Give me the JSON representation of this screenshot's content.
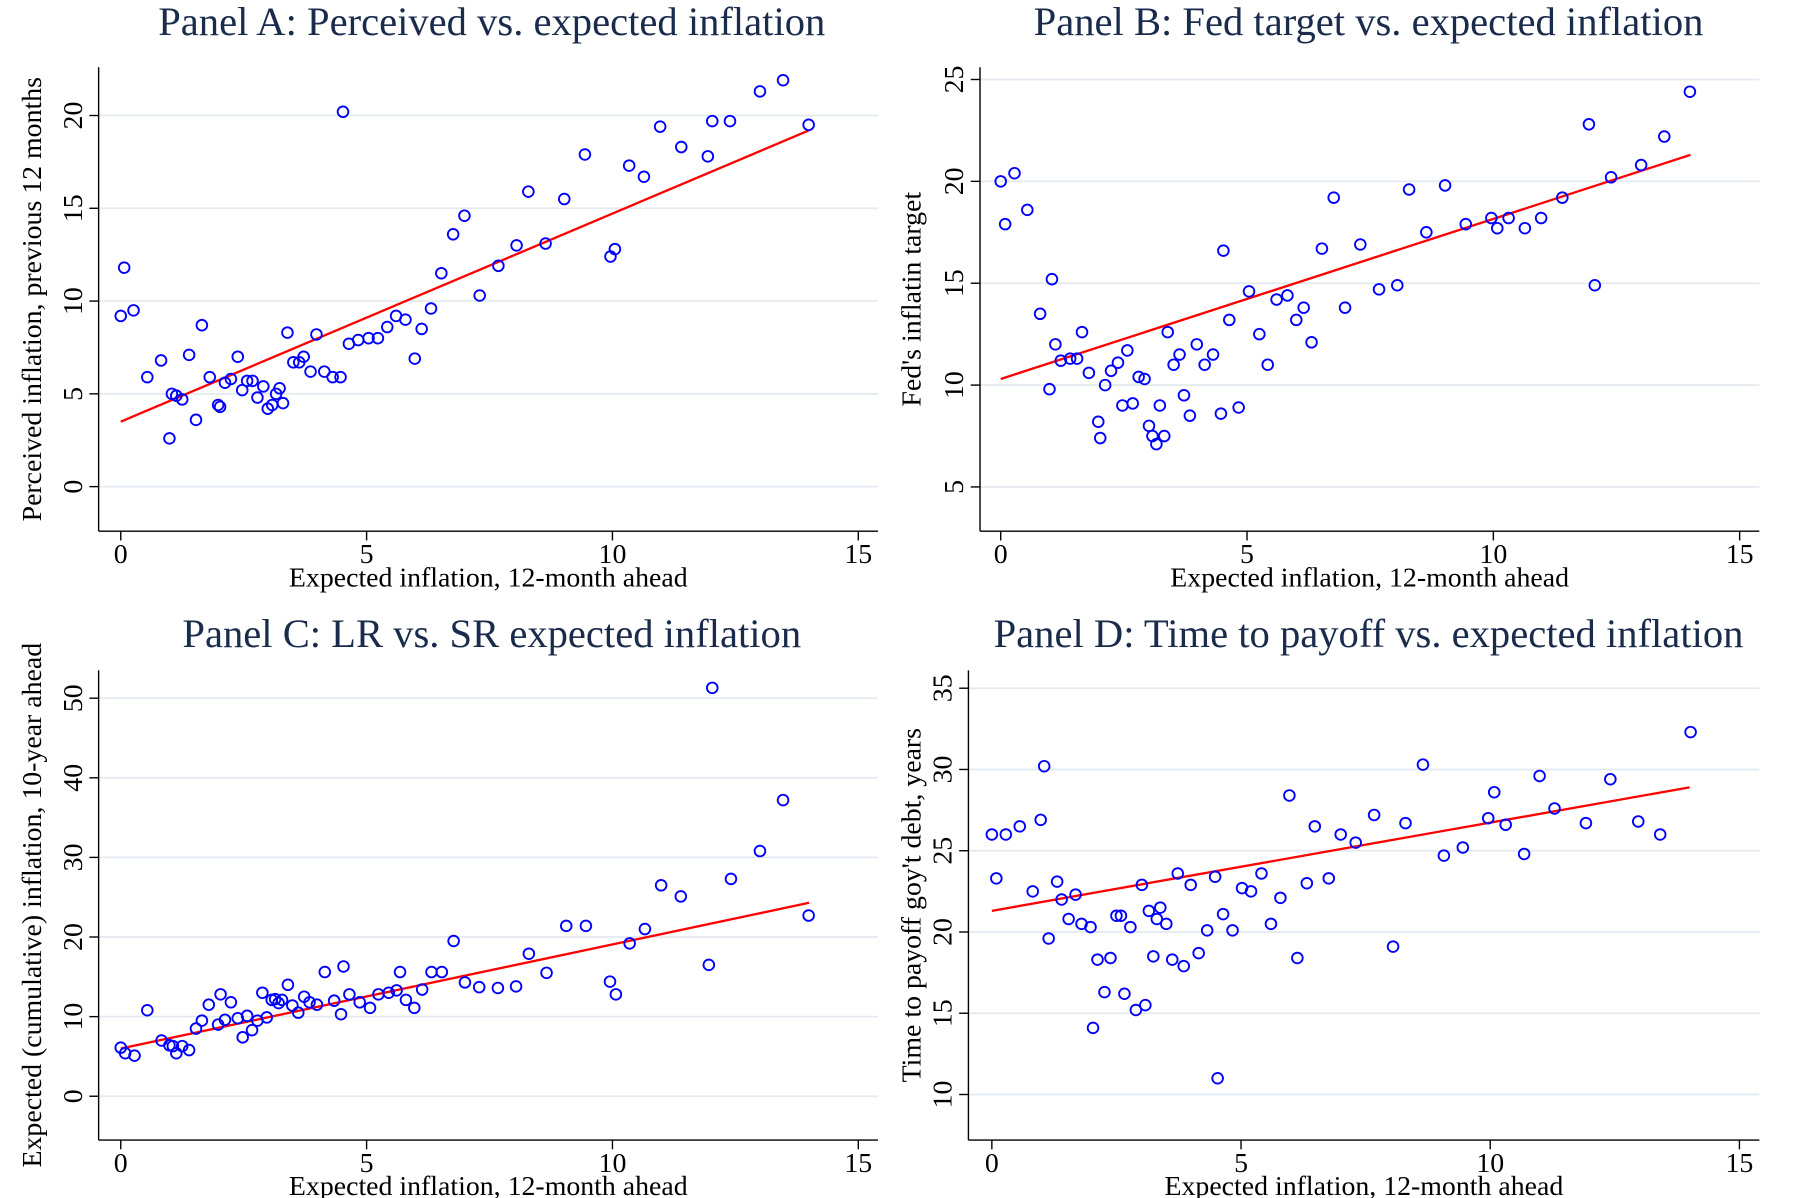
{
  "chart_data": [
    {
      "type": "scatter",
      "title": "Panel A: Perceived vs. expected inflation",
      "x_label": "Expected inflation, 12-month ahead",
      "y_label": "Perceived inflation, previous 12 months",
      "xlim": [
        -0.45,
        15.4
      ],
      "ylim": [
        -2.4,
        22.6
      ],
      "xticks": [
        0,
        5,
        10,
        15
      ],
      "yticks": [
        0,
        5,
        10,
        15,
        20
      ],
      "grid": true,
      "x": [
        0,
        0.07,
        0.26,
        0.54,
        0.82,
        0.99,
        1.04,
        1.13,
        1.25,
        1.39,
        1.53,
        1.65,
        1.81,
        1.98,
        2.02,
        2.12,
        2.24,
        2.38,
        2.47,
        2.57,
        2.68,
        2.78,
        2.9,
        2.99,
        3.08,
        3.16,
        3.23,
        3.3,
        3.39,
        3.51,
        3.63,
        3.72,
        3.86,
        3.98,
        4.14,
        4.31,
        4.47,
        4.52,
        4.64,
        4.83,
        5.04,
        5.23,
        5.42,
        5.6,
        5.79,
        5.98,
        6.12,
        6.31,
        6.52,
        6.76,
        6.99,
        7.3,
        7.68,
        8.05,
        8.29,
        8.64,
        9.02,
        9.44,
        9.96,
        10.05,
        10.34,
        10.64,
        10.97,
        11.4,
        11.94,
        12.03,
        12.39,
        13.0,
        13.47,
        13.99
      ],
      "series": [
        {
          "color": "#0000ff",
          "values": [
            9.2,
            11.8,
            9.5,
            5.9,
            6.8,
            2.6,
            5.0,
            4.9,
            4.7,
            7.1,
            3.6,
            8.7,
            5.9,
            4.4,
            4.3,
            5.6,
            5.8,
            7.0,
            5.2,
            5.7,
            5.7,
            4.8,
            5.4,
            4.2,
            4.4,
            5.0,
            5.3,
            4.5,
            8.3,
            6.7,
            6.7,
            7.0,
            6.2,
            8.2,
            6.2,
            5.9,
            5.9,
            20.2,
            7.7,
            7.9,
            8.0,
            8.0,
            8.6,
            9.2,
            9.0,
            6.9,
            8.5,
            9.6,
            11.5,
            13.6,
            14.6,
            10.3,
            11.9,
            13.0,
            15.9,
            13.1,
            15.5,
            17.9,
            12.4,
            12.8,
            17.3,
            16.7,
            19.4,
            18.3,
            17.8,
            19.7,
            19.7,
            21.3,
            21.9,
            19.5
          ]
        }
      ],
      "fit_line": {
        "color": "#ff0000",
        "x": [
          0,
          14
        ],
        "values": [
          3.5,
          19.2
        ]
      }
    },
    {
      "type": "scatter",
      "title": "Panel B: Fed target vs. expected inflation",
      "x_label": "Expected inflation, 12-month ahead",
      "y_label": "Fed's inflatin target",
      "xlim": [
        -0.42,
        15.4
      ],
      "ylim": [
        2.83,
        25.6
      ],
      "xticks": [
        0,
        5,
        10,
        15
      ],
      "yticks": [
        5,
        10,
        15,
        20,
        25
      ],
      "grid": true,
      "x": [
        0,
        0.09,
        0.28,
        0.54,
        0.8,
        0.99,
        1.04,
        1.11,
        1.22,
        1.41,
        1.55,
        1.65,
        1.79,
        1.98,
        2.02,
        2.12,
        2.24,
        2.38,
        2.47,
        2.57,
        2.68,
        2.8,
        2.92,
        3.01,
        3.08,
        3.16,
        3.23,
        3.32,
        3.39,
        3.51,
        3.63,
        3.72,
        3.84,
        3.98,
        4.14,
        4.31,
        4.47,
        4.52,
        4.64,
        4.83,
        5.04,
        5.25,
        5.42,
        5.6,
        5.82,
        6.0,
        6.15,
        6.31,
        6.52,
        6.76,
        6.99,
        7.3,
        7.68,
        8.05,
        8.29,
        8.64,
        9.02,
        9.44,
        9.96,
        10.08,
        10.31,
        10.64,
        10.97,
        11.4,
        11.94,
        12.06,
        12.39,
        13.0,
        13.47,
        13.99
      ],
      "series": [
        {
          "color": "#0000ff",
          "values": [
            20.0,
            17.9,
            20.4,
            18.6,
            13.5,
            9.8,
            15.2,
            12.0,
            11.2,
            11.3,
            11.3,
            12.6,
            10.6,
            8.2,
            7.4,
            10.0,
            10.7,
            11.1,
            9.0,
            11.7,
            9.1,
            10.4,
            10.3,
            8.0,
            7.5,
            7.1,
            9.0,
            7.5,
            12.6,
            11.0,
            11.5,
            9.5,
            8.5,
            12.0,
            11.0,
            11.5,
            8.6,
            16.6,
            13.2,
            8.9,
            14.6,
            12.5,
            11.0,
            14.2,
            14.4,
            13.2,
            13.8,
            12.1,
            16.7,
            19.2,
            13.8,
            16.9,
            14.7,
            14.9,
            19.6,
            17.5,
            19.8,
            17.9,
            18.2,
            17.7,
            18.2,
            17.7,
            18.2,
            19.2,
            22.8,
            14.9,
            20.2,
            20.8,
            22.2,
            24.4
          ]
        }
      ],
      "fit_line": {
        "color": "#ff0000",
        "x": [
          0,
          14
        ],
        "values": [
          10.3,
          21.3
        ]
      }
    },
    {
      "type": "scatter",
      "title": "Panel C: LR vs. SR expected inflation",
      "x_label": "Expected inflation, 12-month ahead",
      "y_label": "Expected (cumulative) inflation, 10-year ahead",
      "xlim": [
        -0.45,
        15.4
      ],
      "ylim": [
        -5.5,
        53.5
      ],
      "xticks": [
        0,
        5,
        10,
        15
      ],
      "yticks": [
        0,
        10,
        20,
        30,
        40,
        50
      ],
      "grid": true,
      "x": [
        0,
        0.09,
        0.28,
        0.54,
        0.83,
        0.99,
        1.06,
        1.13,
        1.25,
        1.39,
        1.53,
        1.65,
        1.79,
        1.98,
        2.03,
        2.12,
        2.24,
        2.38,
        2.48,
        2.57,
        2.67,
        2.78,
        2.88,
        2.97,
        3.07,
        3.14,
        3.21,
        3.28,
        3.4,
        3.49,
        3.61,
        3.73,
        3.84,
        3.99,
        4.15,
        4.34,
        4.48,
        4.53,
        4.65,
        4.86,
        5.07,
        5.24,
        5.45,
        5.61,
        5.68,
        5.8,
        5.97,
        6.13,
        6.32,
        6.53,
        6.77,
        7.0,
        7.29,
        7.67,
        8.04,
        8.3,
        8.66,
        9.06,
        9.46,
        9.95,
        10.07,
        10.35,
        10.66,
        10.99,
        11.39,
        11.96,
        12.03,
        12.41,
        13.0,
        13.47,
        13.99
      ],
      "series": [
        {
          "color": "#0000ff",
          "values": [
            6.1,
            5.4,
            5.1,
            10.8,
            7.0,
            6.4,
            6.3,
            5.4,
            6.3,
            5.8,
            8.5,
            9.5,
            11.5,
            9.0,
            12.8,
            9.6,
            11.8,
            9.8,
            7.4,
            10.1,
            8.3,
            9.5,
            13.0,
            9.9,
            12.1,
            12.2,
            11.7,
            12.1,
            14.0,
            11.4,
            10.5,
            12.5,
            11.8,
            11.5,
            15.6,
            12.0,
            10.3,
            16.3,
            12.8,
            11.8,
            11.1,
            12.8,
            13.0,
            13.3,
            15.6,
            12.1,
            11.1,
            13.4,
            15.6,
            15.6,
            19.5,
            14.3,
            13.7,
            13.6,
            13.8,
            17.9,
            15.5,
            21.4,
            21.4,
            14.4,
            12.8,
            19.2,
            21.0,
            26.5,
            25.1,
            16.5,
            51.3,
            27.3,
            30.8,
            37.2,
            22.7
          ]
        }
      ],
      "fit_line": {
        "color": "#ff0000",
        "x": [
          0,
          14
        ],
        "values": [
          6.0,
          24.3
        ]
      }
    },
    {
      "type": "scatter",
      "title": "Panel D: Time to payoff vs. expected inflation",
      "x_label": "Expected inflation, 12-month ahead",
      "y_label": "Time to payoff goy't debt, years",
      "xlim": [
        -0.47,
        15.4
      ],
      "ylim": [
        7.2,
        36.1
      ],
      "xticks": [
        0,
        5,
        10,
        15
      ],
      "yticks": [
        10,
        15,
        20,
        25,
        30,
        35
      ],
      "grid": true,
      "x": [
        0,
        0.09,
        0.28,
        0.56,
        0.82,
        0.98,
        1.05,
        1.14,
        1.31,
        1.4,
        1.54,
        1.68,
        1.8,
        1.98,
        2.03,
        2.12,
        2.26,
        2.38,
        2.5,
        2.59,
        2.66,
        2.78,
        2.89,
        3.01,
        3.08,
        3.15,
        3.24,
        3.31,
        3.38,
        3.5,
        3.62,
        3.73,
        3.85,
        3.99,
        4.15,
        4.32,
        4.48,
        4.53,
        4.64,
        4.83,
        5.02,
        5.2,
        5.41,
        5.6,
        5.79,
        5.97,
        6.13,
        6.32,
        6.48,
        6.76,
        7.0,
        7.3,
        7.67,
        8.05,
        8.3,
        8.65,
        9.07,
        9.45,
        9.96,
        10.08,
        10.31,
        10.68,
        10.99,
        11.29,
        11.92,
        12.41,
        12.97,
        13.41,
        14.02
      ],
      "series": [
        {
          "color": "#0000ff",
          "values": [
            26.0,
            23.3,
            26.0,
            26.5,
            22.5,
            26.9,
            30.2,
            19.6,
            23.1,
            22.0,
            20.8,
            22.3,
            20.5,
            20.3,
            14.1,
            18.3,
            16.3,
            18.4,
            21.0,
            21.0,
            16.2,
            20.3,
            15.2,
            22.9,
            15.5,
            21.3,
            18.5,
            20.8,
            21.5,
            20.5,
            18.3,
            23.6,
            17.9,
            22.9,
            18.7,
            20.1,
            23.4,
            11.0,
            21.1,
            20.1,
            22.7,
            22.5,
            23.6,
            20.5,
            22.1,
            28.4,
            18.4,
            23.0,
            26.5,
            23.3,
            26.0,
            25.5,
            27.2,
            19.1,
            26.7,
            30.3,
            24.7,
            25.2,
            27.0,
            28.6,
            26.6,
            24.8,
            29.6,
            27.6,
            26.7,
            29.4,
            26.8,
            26.0,
            32.3
          ]
        }
      ],
      "fit_line": {
        "color": "#ff0000",
        "x": [
          0,
          14
        ],
        "values": [
          21.3,
          28.9
        ]
      }
    }
  ]
}
